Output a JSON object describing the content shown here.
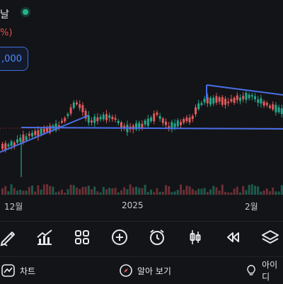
{
  "header": {
    "title_fragment": "날",
    "change_fragment": "%)",
    "price_box_value": ",000"
  },
  "axis": {
    "x_labels": [
      "12월",
      "2025",
      "2월"
    ]
  },
  "toolbar": {
    "tools": [
      "pencil-icon",
      "indicator-chart-icon",
      "grid-icon",
      "add-icon",
      "alarm-clock-icon",
      "candlestick-icon",
      "rewind-icon",
      "layers-icon"
    ]
  },
  "bottom_nav": {
    "chart_label": "차트",
    "learn_label": "알아 보기",
    "idea_label": "아이디"
  },
  "colors": {
    "up": "#22a88a",
    "down": "#e05a5d",
    "trendline": "#4a6fe8",
    "background": "#131417"
  }
}
